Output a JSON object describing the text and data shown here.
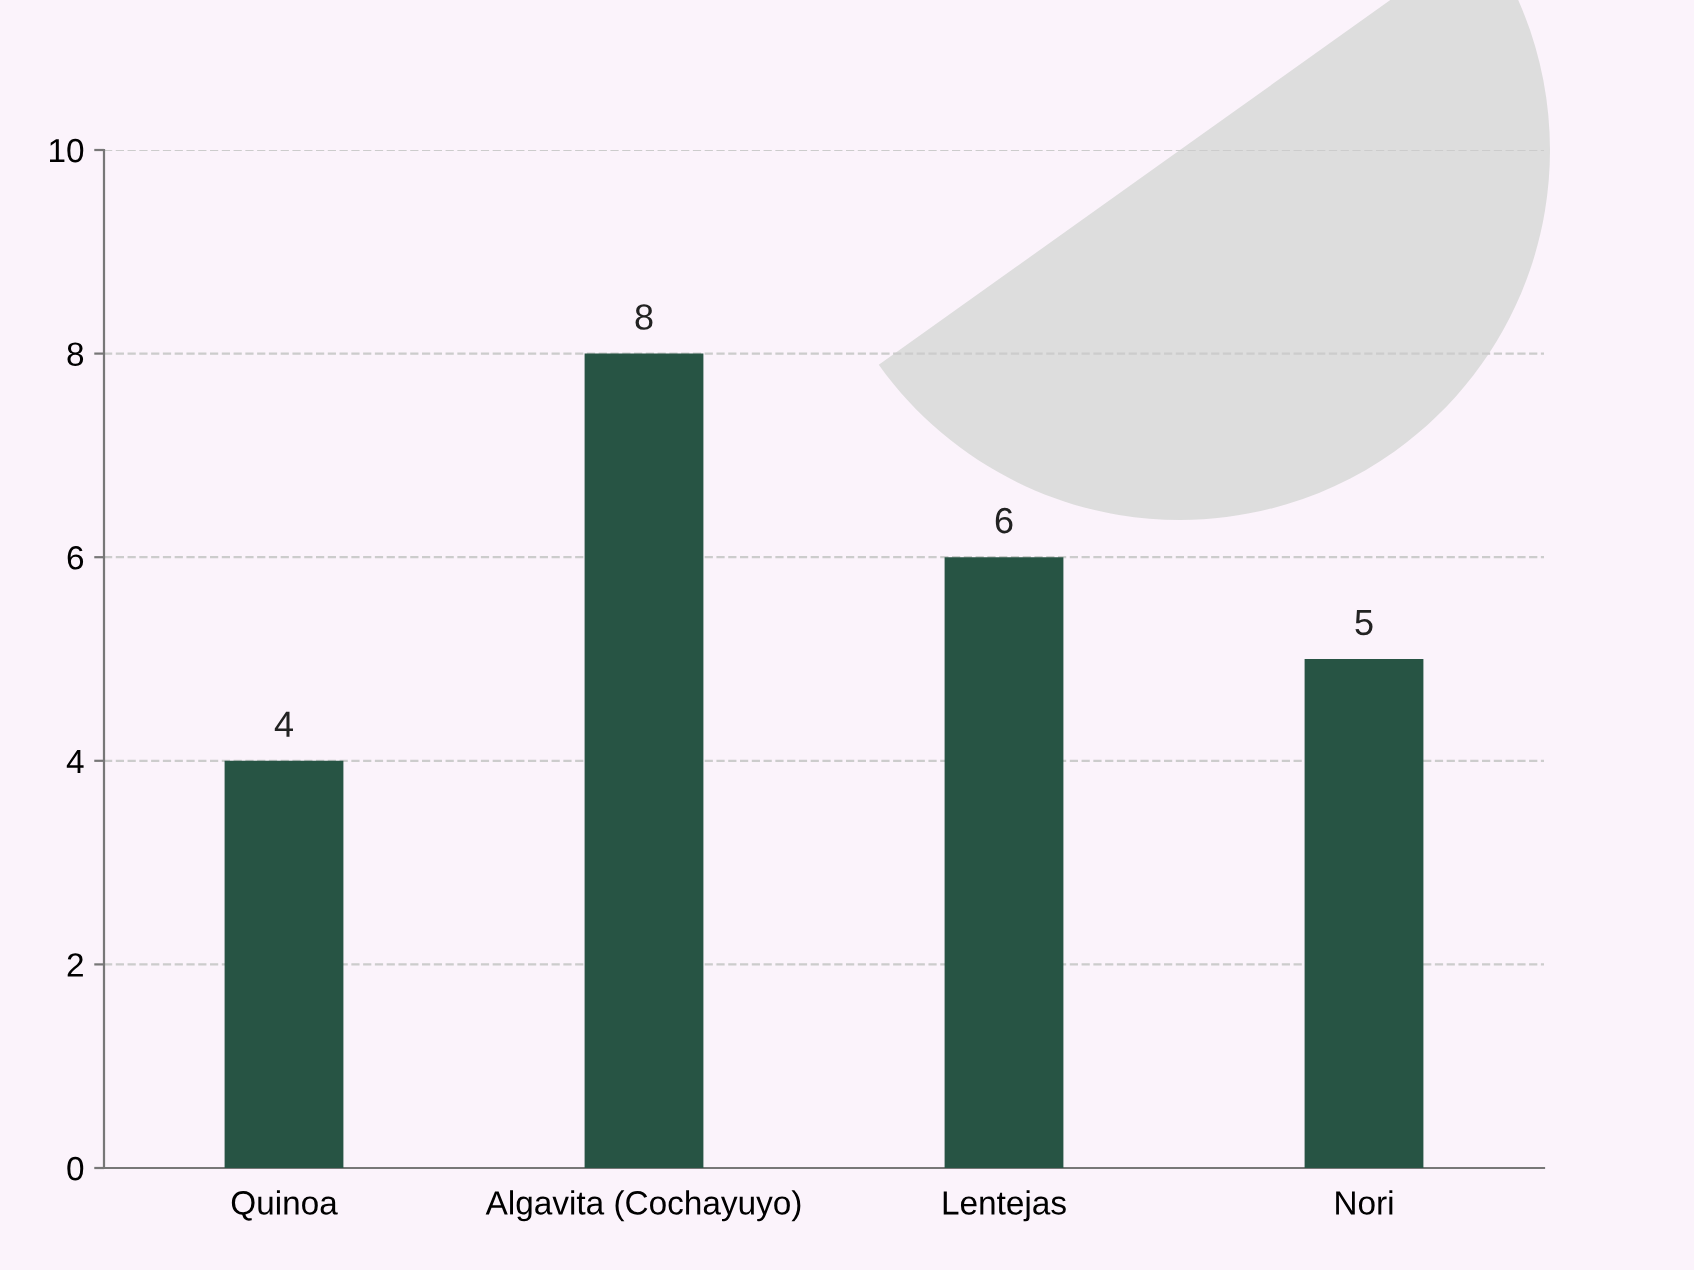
{
  "chart_data": {
    "type": "bar",
    "categories": [
      "Quinoa",
      "Algavita (Cochayuyo)",
      "Lentejas",
      "Nori"
    ],
    "values": [
      4,
      8,
      6,
      5
    ],
    "color": "#275444",
    "ylim": [
      0,
      10
    ],
    "yticks": [
      0,
      2,
      4,
      6,
      8,
      10
    ],
    "grid": "y",
    "data_labels": true
  }
}
